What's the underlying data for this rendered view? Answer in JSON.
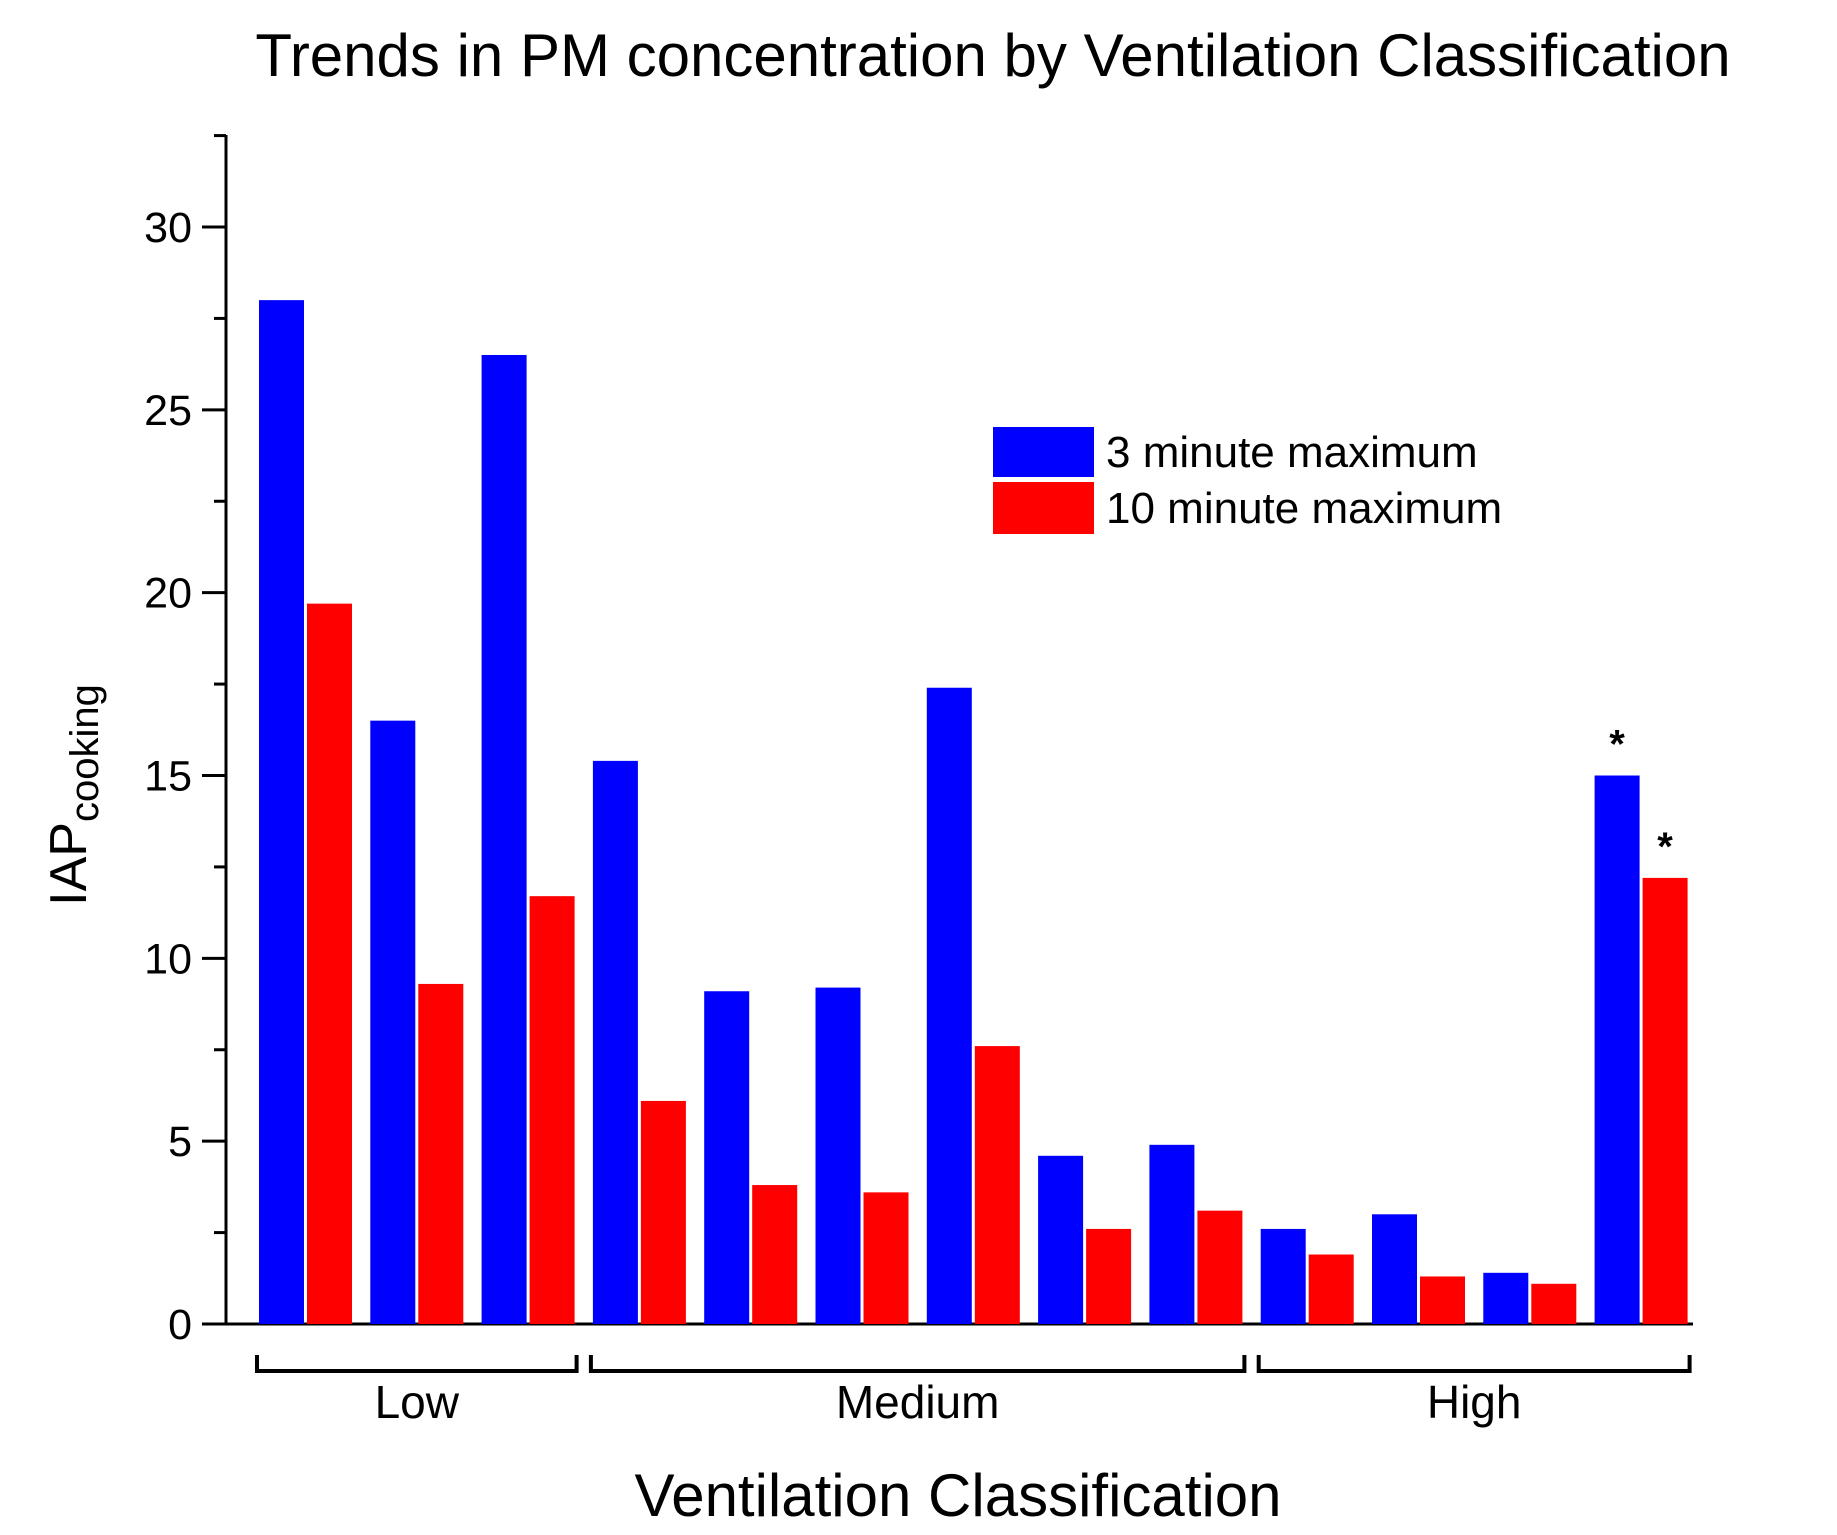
{
  "chart_data": {
    "type": "bar",
    "title": "Trends in PM concentration by Ventilation Classification",
    "xlabel": "Ventilation Classification",
    "ylabel_main": "IAP",
    "ylabel_sub": "cooking",
    "ylim": [
      0,
      32.5
    ],
    "yticks": [
      0,
      5,
      10,
      15,
      20,
      25,
      30
    ],
    "grid": false,
    "legend_position": "top-right",
    "colors": {
      "3 minute maximum": "#0000ff",
      "10 minute maximum": "#ff0000"
    },
    "series": [
      {
        "name": "3 minute maximum",
        "values": [
          28.0,
          16.5,
          26.5,
          15.4,
          9.1,
          9.2,
          17.4,
          4.6,
          4.9,
          2.6,
          3.0,
          1.4,
          15.0
        ]
      },
      {
        "name": "10 minute maximum",
        "values": [
          19.7,
          9.3,
          11.7,
          6.1,
          3.8,
          3.6,
          7.6,
          2.6,
          3.1,
          1.9,
          1.3,
          1.1,
          12.2
        ]
      }
    ],
    "groups": [
      {
        "label": "Low",
        "start": 0,
        "end": 2
      },
      {
        "label": "Medium",
        "start": 3,
        "end": 8
      },
      {
        "label": "High",
        "start": 9,
        "end": 12
      }
    ],
    "annotations": [
      {
        "text": "*",
        "series": 0,
        "index": 12
      },
      {
        "text": "*",
        "series": 1,
        "index": 12
      }
    ]
  }
}
